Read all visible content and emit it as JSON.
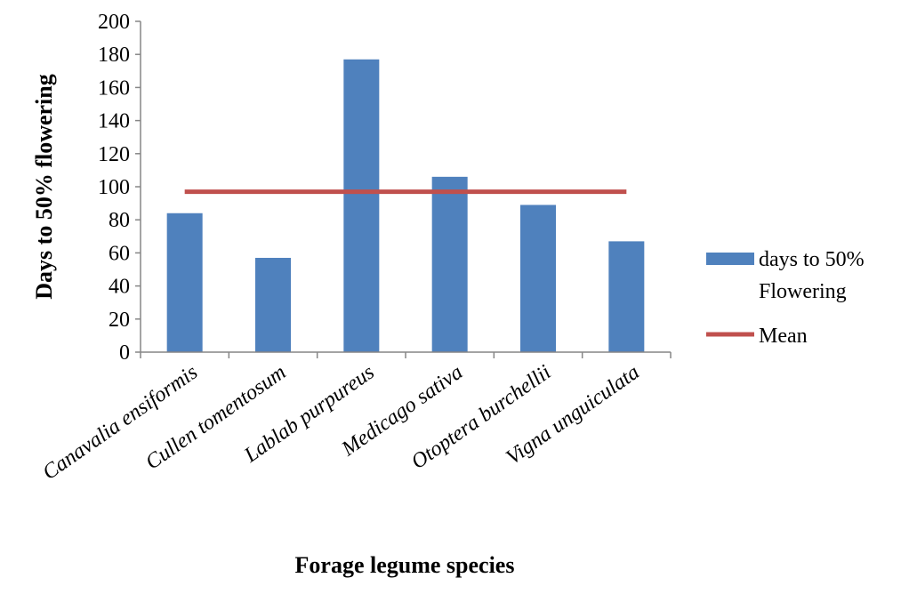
{
  "chart_data": {
    "type": "bar",
    "categories": [
      "Canavalia ensiformis",
      "Cullen tomentosum",
      "Lablab purpureus",
      "Medicago sativa",
      "Otoptera burchellii",
      "Vigna unguiculata"
    ],
    "series": [
      {
        "name": "days to 50% Flowering",
        "values": [
          84,
          57,
          177,
          106,
          89,
          67
        ],
        "color": "#4f81bd"
      }
    ],
    "mean_line": {
      "name": "Mean",
      "value": 97,
      "color": "#c0504d"
    },
    "ylabel": "Days to 50% flowering",
    "xlabel": "Forage legume species",
    "ylim": [
      0,
      200
    ],
    "yticks": [
      "0",
      "20",
      "40",
      "60",
      "80",
      "100",
      "120",
      "140",
      "160",
      "180",
      "200"
    ],
    "legend": {
      "position": "right",
      "bar_label_line1": "days to 50%",
      "bar_label_line2": "Flowering",
      "line_label": "Mean"
    },
    "grid": false
  }
}
